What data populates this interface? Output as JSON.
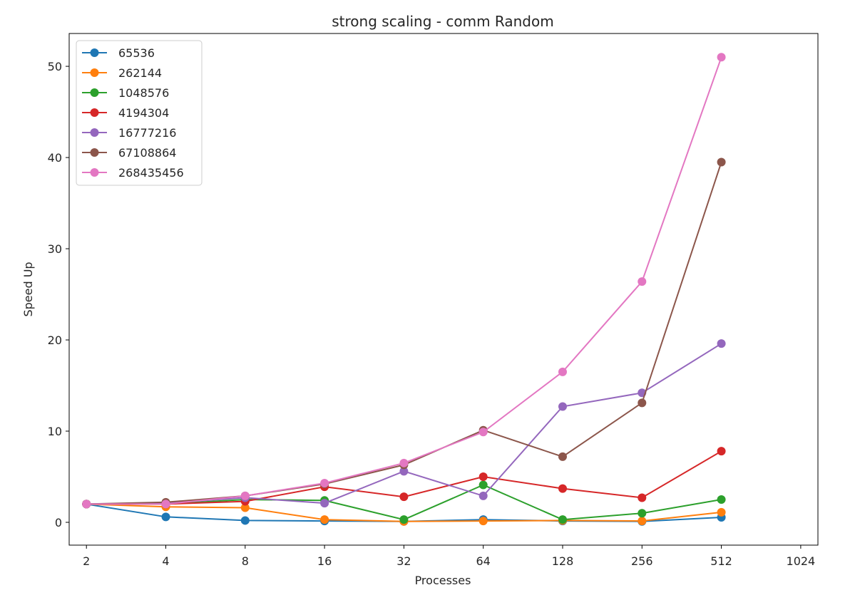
{
  "chart_data": {
    "type": "line",
    "title": "strong scaling - comm  Random",
    "xlabel": "Processes",
    "ylabel": "Speed Up",
    "x_scale": "log2",
    "x": [
      2,
      4,
      8,
      16,
      32,
      64,
      128,
      256,
      512
    ],
    "x_ticks": [
      "2",
      "4",
      "8",
      "16",
      "32",
      "64",
      "128",
      "256",
      "512",
      "1024"
    ],
    "x_tick_values": [
      2,
      4,
      8,
      16,
      32,
      64,
      128,
      256,
      512,
      1024
    ],
    "y_ticks": [
      "0",
      "10",
      "20",
      "30",
      "40",
      "50"
    ],
    "y_tick_values": [
      0,
      10,
      20,
      30,
      40,
      50
    ],
    "xlim": [
      1.72,
      1190
    ],
    "ylim": [
      -2.5,
      53.6
    ],
    "grid": false,
    "legend_position": "top-left",
    "marker": "circle",
    "series": [
      {
        "name": "65536",
        "color": "#1f77b4",
        "values": [
          2.0,
          0.6,
          0.2,
          0.15,
          0.1,
          0.3,
          0.15,
          0.1,
          0.55
        ]
      },
      {
        "name": "262144",
        "color": "#ff7f0e",
        "values": [
          2.0,
          1.7,
          1.6,
          0.3,
          0.1,
          0.15,
          0.2,
          0.15,
          1.1
        ]
      },
      {
        "name": "1048576",
        "color": "#2ca02c",
        "values": [
          2.0,
          2.0,
          2.5,
          2.4,
          0.3,
          4.1,
          0.3,
          1.0,
          2.5
        ]
      },
      {
        "name": "4194304",
        "color": "#d62728",
        "values": [
          2.0,
          2.0,
          2.3,
          3.9,
          2.8,
          5.0,
          3.7,
          2.7,
          7.8
        ]
      },
      {
        "name": "16777216",
        "color": "#9467bd",
        "values": [
          2.0,
          2.1,
          2.7,
          2.1,
          5.6,
          2.9,
          12.7,
          14.2,
          19.6
        ]
      },
      {
        "name": "67108864",
        "color": "#8c564b",
        "values": [
          2.0,
          2.2,
          2.9,
          4.2,
          6.3,
          10.1,
          7.2,
          13.1,
          39.5
        ]
      },
      {
        "name": "268435456",
        "color": "#e377c2",
        "values": [
          2.0,
          2.0,
          2.9,
          4.3,
          6.5,
          9.9,
          16.5,
          26.4,
          51.0
        ]
      }
    ]
  }
}
